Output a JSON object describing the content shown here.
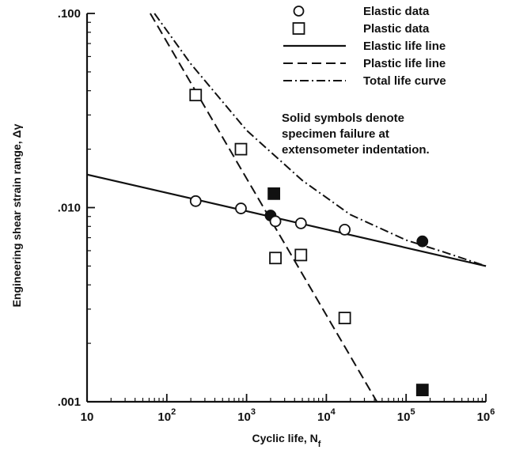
{
  "chart_data": {
    "type": "scatter",
    "title": "",
    "xlabel": "Cyclic life, N",
    "xlabel_subscript": "f",
    "ylabel": "Engineering shear strain range, Δγ",
    "x_scale": "log",
    "y_scale": "log",
    "xlim": [
      10,
      1000000
    ],
    "ylim": [
      0.001,
      0.1
    ],
    "grid": false,
    "legend_position": "top-right",
    "x_ticks": [
      {
        "value": 10,
        "base": "10",
        "exp": ""
      },
      {
        "value": 100,
        "base": "10",
        "exp": "2"
      },
      {
        "value": 1000,
        "base": "10",
        "exp": "3"
      },
      {
        "value": 10000,
        "base": "10",
        "exp": "4"
      },
      {
        "value": 100000,
        "base": "10",
        "exp": "5"
      },
      {
        "value": 1000000,
        "base": "10",
        "exp": "6"
      }
    ],
    "y_ticks": [
      {
        "value": 0.001,
        "label": ".001"
      },
      {
        "value": 0.01,
        "label": ".010"
      },
      {
        "value": 0.1,
        "label": ".100"
      }
    ],
    "series": [
      {
        "name": "Elastic data",
        "kind": "points",
        "marker": "circle",
        "points": [
          {
            "x": 230,
            "y": 0.0108,
            "filled": false
          },
          {
            "x": 850,
            "y": 0.0099,
            "filled": false
          },
          {
            "x": 2000,
            "y": 0.0091,
            "filled": true
          },
          {
            "x": 2300,
            "y": 0.0085,
            "filled": false
          },
          {
            "x": 4800,
            "y": 0.0083,
            "filled": false
          },
          {
            "x": 17000,
            "y": 0.0077,
            "filled": false
          },
          {
            "x": 160000,
            "y": 0.0067,
            "filled": true
          }
        ]
      },
      {
        "name": "Plastic data",
        "kind": "points",
        "marker": "square",
        "points": [
          {
            "x": 230,
            "y": 0.038,
            "filled": false
          },
          {
            "x": 850,
            "y": 0.02,
            "filled": false
          },
          {
            "x": 2200,
            "y": 0.0118,
            "filled": true
          },
          {
            "x": 2300,
            "y": 0.0055,
            "filled": false
          },
          {
            "x": 4800,
            "y": 0.0057,
            "filled": false
          },
          {
            "x": 17000,
            "y": 0.0027,
            "filled": false
          },
          {
            "x": 160000,
            "y": 0.00115,
            "filled": true
          }
        ]
      },
      {
        "name": "Elastic life line",
        "kind": "line",
        "style": "solid",
        "points": [
          {
            "x": 10,
            "y": 0.0148
          },
          {
            "x": 1000000,
            "y": 0.005
          }
        ]
      },
      {
        "name": "Plastic life line",
        "kind": "line",
        "style": "dashed",
        "points": [
          {
            "x": 62,
            "y": 0.1
          },
          {
            "x": 43000,
            "y": 0.001
          }
        ]
      },
      {
        "name": "Total life curve",
        "kind": "line",
        "style": "dashdot",
        "points": [
          {
            "x": 70,
            "y": 0.1
          },
          {
            "x": 200,
            "y": 0.055
          },
          {
            "x": 1000,
            "y": 0.025
          },
          {
            "x": 5000,
            "y": 0.0138
          },
          {
            "x": 20000,
            "y": 0.0092
          },
          {
            "x": 100000,
            "y": 0.0068
          },
          {
            "x": 300000,
            "y": 0.0059
          },
          {
            "x": 1000000,
            "y": 0.005
          }
        ]
      }
    ],
    "annotation": [
      "Solid symbols denote",
      "specimen failure at",
      "extensometer indentation."
    ]
  }
}
